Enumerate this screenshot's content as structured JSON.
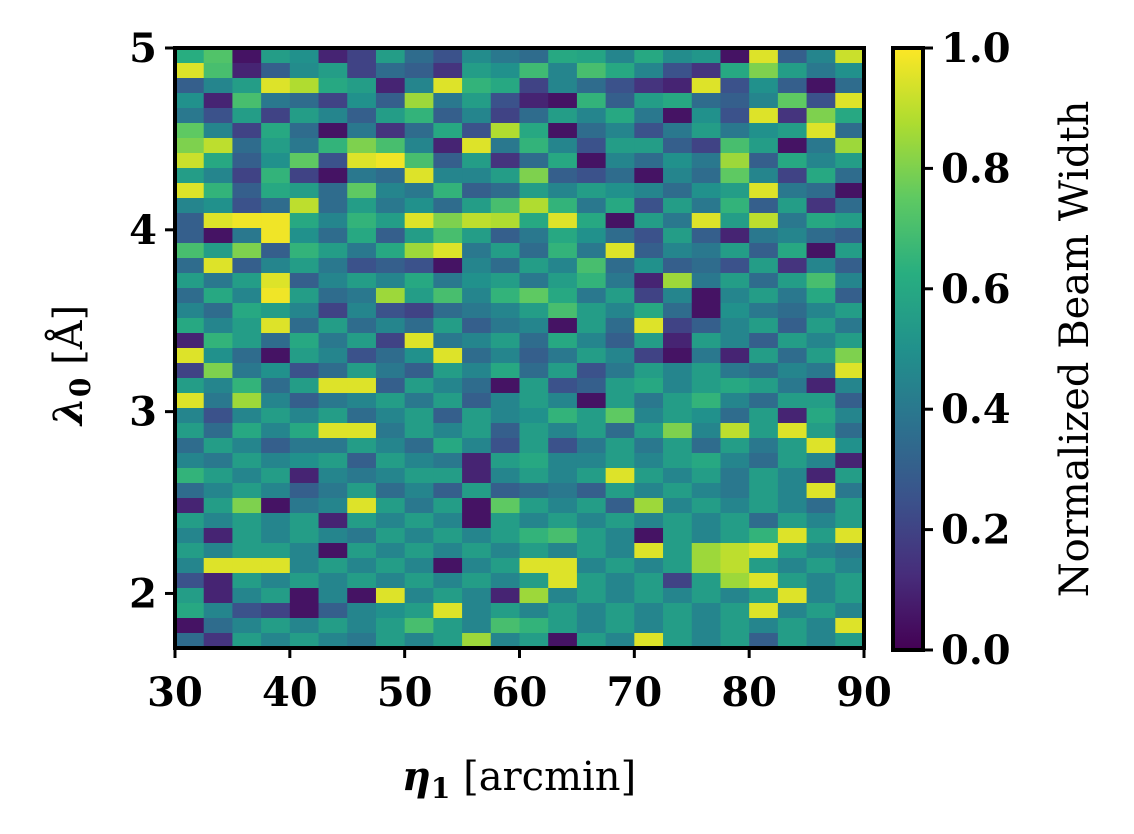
{
  "chart_data": {
    "type": "heatmap",
    "colormap": "viridis",
    "xlabel": {
      "symbol": "η",
      "subscript": "1",
      "unit": " [arcmin]"
    },
    "ylabel": {
      "symbol": "λ",
      "subscript": "0",
      "unit": " [Å]"
    },
    "xlim": [
      30,
      90
    ],
    "ylim": [
      1.7,
      5
    ],
    "x_ticks": [
      30,
      40,
      50,
      60,
      70,
      80,
      90
    ],
    "x_tick_labels": [
      "30",
      "40",
      "50",
      "60",
      "70",
      "80",
      "90"
    ],
    "y_ticks": [
      2,
      3,
      4,
      5
    ],
    "y_tick_labels": [
      "2",
      "3",
      "4",
      "5"
    ],
    "colorbar": {
      "label": "Normalized Beam Width",
      "range": [
        0,
        1
      ],
      "ticks": [
        0.0,
        0.2,
        0.4,
        0.6,
        0.8,
        1.0
      ],
      "tick_labels": [
        "0.0",
        "0.2",
        "0.4",
        "0.6",
        "0.8",
        "1.0"
      ]
    },
    "n_cols": 24,
    "n_rows": 40,
    "z_rows_top_to_bottom": [
      [
        0.62,
        0.72,
        0.05,
        0.55,
        0.5,
        0.1,
        0.2,
        0.55,
        0.35,
        0.25,
        0.48,
        0.4,
        0.35,
        0.6,
        0.58,
        0.45,
        0.6,
        0.48,
        0.52,
        0.05,
        0.95,
        0.3,
        0.45,
        0.92
      ],
      [
        0.95,
        0.7,
        0.1,
        0.3,
        0.48,
        0.55,
        0.2,
        0.35,
        0.3,
        0.15,
        0.55,
        0.5,
        0.68,
        0.45,
        0.7,
        0.6,
        0.45,
        0.25,
        0.15,
        0.6,
        0.8,
        0.55,
        0.4,
        0.5
      ],
      [
        0.3,
        0.45,
        0.55,
        0.95,
        0.88,
        0.6,
        0.55,
        0.1,
        0.45,
        0.95,
        0.65,
        0.6,
        0.2,
        0.45,
        0.35,
        0.25,
        0.15,
        0.1,
        0.95,
        0.25,
        0.5,
        0.3,
        0.05,
        0.35
      ],
      [
        0.5,
        0.1,
        0.7,
        0.4,
        0.35,
        0.2,
        0.5,
        0.3,
        0.85,
        0.4,
        0.55,
        0.25,
        0.1,
        0.05,
        0.65,
        0.3,
        0.55,
        0.6,
        0.35,
        0.3,
        0.45,
        0.75,
        0.25,
        0.95
      ],
      [
        0.4,
        0.25,
        0.55,
        0.2,
        0.55,
        0.45,
        0.3,
        0.55,
        0.65,
        0.3,
        0.45,
        0.2,
        0.35,
        0.55,
        0.45,
        0.6,
        0.4,
        0.05,
        0.5,
        0.25,
        0.95,
        0.15,
        0.8,
        0.6
      ],
      [
        0.75,
        0.45,
        0.2,
        0.6,
        0.35,
        0.05,
        0.4,
        0.15,
        0.35,
        0.6,
        0.25,
        0.88,
        0.6,
        0.05,
        0.35,
        0.45,
        0.25,
        0.4,
        0.55,
        0.4,
        0.5,
        0.55,
        0.95,
        0.35
      ],
      [
        0.8,
        0.9,
        0.35,
        0.55,
        0.4,
        0.65,
        0.8,
        0.7,
        0.45,
        0.1,
        0.95,
        0.4,
        0.65,
        0.45,
        0.25,
        0.55,
        0.55,
        0.3,
        0.2,
        0.7,
        0.55,
        0.05,
        0.4,
        0.85
      ],
      [
        0.92,
        0.6,
        0.3,
        0.5,
        0.75,
        0.25,
        0.95,
        0.98,
        0.7,
        0.3,
        0.55,
        0.15,
        0.35,
        0.6,
        0.05,
        0.45,
        0.35,
        0.5,
        0.4,
        0.85,
        0.3,
        0.6,
        0.45,
        0.55
      ],
      [
        0.55,
        0.45,
        0.2,
        0.65,
        0.2,
        0.05,
        0.4,
        0.35,
        0.95,
        0.45,
        0.45,
        0.55,
        0.8,
        0.3,
        0.25,
        0.35,
        0.05,
        0.45,
        0.35,
        0.75,
        0.45,
        0.2,
        0.6,
        0.35
      ],
      [
        0.95,
        0.65,
        0.3,
        0.6,
        0.55,
        0.35,
        0.75,
        0.45,
        0.4,
        0.65,
        0.3,
        0.35,
        0.55,
        0.45,
        0.55,
        0.5,
        0.45,
        0.35,
        0.5,
        0.55,
        0.95,
        0.4,
        0.35,
        0.05
      ],
      [
        0.45,
        0.5,
        0.25,
        0.35,
        0.9,
        0.35,
        0.55,
        0.4,
        0.5,
        0.35,
        0.55,
        0.7,
        0.88,
        0.65,
        0.4,
        0.6,
        0.25,
        0.55,
        0.4,
        0.65,
        0.3,
        0.55,
        0.15,
        0.35
      ],
      [
        0.3,
        0.95,
        0.98,
        0.98,
        0.6,
        0.45,
        0.65,
        0.55,
        0.95,
        0.8,
        0.9,
        0.88,
        0.6,
        0.95,
        0.6,
        0.05,
        0.55,
        0.4,
        0.95,
        0.55,
        0.9,
        0.4,
        0.6,
        0.55
      ],
      [
        0.3,
        0.05,
        0.4,
        0.98,
        0.5,
        0.35,
        0.6,
        0.3,
        0.55,
        0.7,
        0.55,
        0.3,
        0.4,
        0.6,
        0.5,
        0.35,
        0.25,
        0.55,
        0.3,
        0.1,
        0.4,
        0.45,
        0.35,
        0.3
      ],
      [
        0.7,
        0.55,
        0.8,
        0.3,
        0.65,
        0.55,
        0.4,
        0.6,
        0.85,
        0.95,
        0.4,
        0.55,
        0.35,
        0.65,
        0.4,
        0.95,
        0.3,
        0.45,
        0.4,
        0.55,
        0.3,
        0.6,
        0.05,
        0.55
      ],
      [
        0.35,
        0.95,
        0.3,
        0.45,
        0.55,
        0.4,
        0.25,
        0.3,
        0.25,
        0.05,
        0.45,
        0.35,
        0.55,
        0.45,
        0.7,
        0.35,
        0.5,
        0.3,
        0.35,
        0.25,
        0.55,
        0.15,
        0.45,
        0.3
      ],
      [
        0.55,
        0.4,
        0.55,
        0.95,
        0.3,
        0.45,
        0.55,
        0.45,
        0.6,
        0.4,
        0.5,
        0.55,
        0.4,
        0.55,
        0.65,
        0.4,
        0.1,
        0.85,
        0.4,
        0.55,
        0.35,
        0.55,
        0.7,
        0.45
      ],
      [
        0.35,
        0.6,
        0.45,
        0.98,
        0.55,
        0.35,
        0.4,
        0.85,
        0.55,
        0.7,
        0.45,
        0.65,
        0.75,
        0.6,
        0.4,
        0.55,
        0.2,
        0.45,
        0.05,
        0.45,
        0.55,
        0.4,
        0.6,
        0.3
      ],
      [
        0.45,
        0.35,
        0.6,
        0.55,
        0.45,
        0.2,
        0.45,
        0.25,
        0.2,
        0.35,
        0.4,
        0.45,
        0.55,
        0.7,
        0.55,
        0.45,
        0.6,
        0.35,
        0.05,
        0.5,
        0.4,
        0.35,
        0.45,
        0.55
      ],
      [
        0.6,
        0.45,
        0.55,
        0.95,
        0.35,
        0.55,
        0.35,
        0.45,
        0.35,
        0.55,
        0.3,
        0.4,
        0.45,
        0.05,
        0.55,
        0.35,
        0.95,
        0.2,
        0.3,
        0.45,
        0.55,
        0.3,
        0.55,
        0.4
      ],
      [
        0.1,
        0.65,
        0.55,
        0.35,
        0.6,
        0.4,
        0.55,
        0.2,
        0.95,
        0.4,
        0.45,
        0.55,
        0.35,
        0.6,
        0.45,
        0.3,
        0.55,
        0.1,
        0.55,
        0.45,
        0.3,
        0.55,
        0.45,
        0.55
      ],
      [
        0.95,
        0.5,
        0.35,
        0.05,
        0.55,
        0.45,
        0.25,
        0.35,
        0.5,
        0.95,
        0.35,
        0.45,
        0.3,
        0.4,
        0.55,
        0.45,
        0.2,
        0.05,
        0.4,
        0.1,
        0.55,
        0.35,
        0.55,
        0.8
      ],
      [
        0.2,
        0.8,
        0.4,
        0.5,
        0.25,
        0.35,
        0.55,
        0.4,
        0.3,
        0.55,
        0.45,
        0.6,
        0.35,
        0.55,
        0.25,
        0.4,
        0.55,
        0.45,
        0.55,
        0.4,
        0.35,
        0.45,
        0.4,
        0.95
      ],
      [
        0.55,
        0.45,
        0.65,
        0.35,
        0.55,
        0.95,
        0.95,
        0.3,
        0.55,
        0.45,
        0.35,
        0.05,
        0.55,
        0.25,
        0.3,
        0.55,
        0.6,
        0.45,
        0.55,
        0.6,
        0.55,
        0.4,
        0.1,
        0.45
      ],
      [
        0.95,
        0.4,
        0.85,
        0.45,
        0.3,
        0.4,
        0.45,
        0.55,
        0.4,
        0.55,
        0.3,
        0.45,
        0.55,
        0.45,
        0.05,
        0.55,
        0.4,
        0.55,
        0.65,
        0.45,
        0.35,
        0.55,
        0.55,
        0.3
      ],
      [
        0.45,
        0.25,
        0.45,
        0.55,
        0.45,
        0.55,
        0.35,
        0.45,
        0.55,
        0.3,
        0.55,
        0.45,
        0.5,
        0.65,
        0.55,
        0.75,
        0.45,
        0.55,
        0.5,
        0.35,
        0.55,
        0.1,
        0.6,
        0.45
      ],
      [
        0.55,
        0.35,
        0.6,
        0.45,
        0.6,
        0.95,
        0.95,
        0.4,
        0.55,
        0.45,
        0.55,
        0.3,
        0.55,
        0.45,
        0.55,
        0.35,
        0.55,
        0.8,
        0.45,
        0.9,
        0.55,
        0.95,
        0.55,
        0.35
      ],
      [
        0.35,
        0.55,
        0.45,
        0.3,
        0.4,
        0.4,
        0.55,
        0.45,
        0.35,
        0.6,
        0.45,
        0.25,
        0.55,
        0.25,
        0.4,
        0.55,
        0.4,
        0.55,
        0.35,
        0.55,
        0.4,
        0.55,
        0.95,
        0.5
      ],
      [
        0.45,
        0.4,
        0.55,
        0.45,
        0.5,
        0.55,
        0.3,
        0.55,
        0.45,
        0.4,
        0.1,
        0.55,
        0.6,
        0.45,
        0.45,
        0.55,
        0.45,
        0.55,
        0.6,
        0.45,
        0.35,
        0.55,
        0.45,
        0.1
      ],
      [
        0.65,
        0.55,
        0.45,
        0.55,
        0.1,
        0.45,
        0.4,
        0.45,
        0.55,
        0.55,
        0.1,
        0.45,
        0.55,
        0.45,
        0.55,
        0.95,
        0.55,
        0.45,
        0.55,
        0.4,
        0.55,
        0.45,
        0.1,
        0.55
      ],
      [
        0.35,
        0.45,
        0.55,
        0.45,
        0.3,
        0.4,
        0.55,
        0.35,
        0.45,
        0.3,
        0.55,
        0.3,
        0.35,
        0.4,
        0.3,
        0.55,
        0.45,
        0.55,
        0.45,
        0.4,
        0.55,
        0.45,
        0.95,
        0.4
      ],
      [
        0.1,
        0.55,
        0.8,
        0.05,
        0.4,
        0.45,
        0.95,
        0.55,
        0.4,
        0.55,
        0.05,
        0.75,
        0.55,
        0.45,
        0.55,
        0.3,
        0.85,
        0.45,
        0.55,
        0.45,
        0.55,
        0.45,
        0.35,
        0.55
      ],
      [
        0.55,
        0.45,
        0.55,
        0.45,
        0.55,
        0.1,
        0.55,
        0.45,
        0.55,
        0.45,
        0.05,
        0.55,
        0.45,
        0.55,
        0.45,
        0.55,
        0.45,
        0.55,
        0.45,
        0.55,
        0.35,
        0.55,
        0.45,
        0.55
      ],
      [
        0.45,
        0.1,
        0.55,
        0.45,
        0.55,
        0.45,
        0.4,
        0.55,
        0.45,
        0.55,
        0.45,
        0.55,
        0.65,
        0.7,
        0.55,
        0.45,
        0.05,
        0.55,
        0.45,
        0.55,
        0.65,
        0.95,
        0.55,
        0.95
      ],
      [
        0.55,
        0.45,
        0.55,
        0.55,
        0.45,
        0.05,
        0.55,
        0.45,
        0.55,
        0.45,
        0.55,
        0.45,
        0.55,
        0.45,
        0.55,
        0.45,
        0.95,
        0.55,
        0.85,
        0.9,
        0.95,
        0.55,
        0.45,
        0.4
      ],
      [
        0.45,
        0.95,
        0.95,
        0.95,
        0.45,
        0.55,
        0.45,
        0.55,
        0.45,
        0.05,
        0.45,
        0.55,
        0.95,
        0.95,
        0.45,
        0.55,
        0.45,
        0.55,
        0.85,
        0.9,
        0.55,
        0.45,
        0.55,
        0.45
      ],
      [
        0.25,
        0.1,
        0.55,
        0.45,
        0.55,
        0.45,
        0.55,
        0.45,
        0.55,
        0.45,
        0.55,
        0.45,
        0.55,
        0.95,
        0.55,
        0.45,
        0.55,
        0.2,
        0.55,
        0.85,
        0.95,
        0.55,
        0.45,
        0.55
      ],
      [
        0.55,
        0.1,
        0.45,
        0.55,
        0.05,
        0.45,
        0.05,
        0.95,
        0.45,
        0.55,
        0.45,
        0.1,
        0.85,
        0.45,
        0.55,
        0.45,
        0.55,
        0.45,
        0.55,
        0.45,
        0.55,
        0.95,
        0.45,
        0.55
      ],
      [
        0.6,
        0.45,
        0.25,
        0.2,
        0.05,
        0.3,
        0.45,
        0.5,
        0.55,
        0.95,
        0.45,
        0.55,
        0.45,
        0.55,
        0.45,
        0.55,
        0.45,
        0.55,
        0.45,
        0.55,
        0.95,
        0.45,
        0.55,
        0.45
      ],
      [
        0.05,
        0.35,
        0.45,
        0.55,
        0.45,
        0.55,
        0.45,
        0.55,
        0.7,
        0.55,
        0.45,
        0.7,
        0.65,
        0.55,
        0.45,
        0.55,
        0.45,
        0.55,
        0.45,
        0.55,
        0.45,
        0.55,
        0.45,
        0.95
      ],
      [
        0.35,
        0.15,
        0.55,
        0.45,
        0.55,
        0.45,
        0.4,
        0.55,
        0.45,
        0.55,
        0.85,
        0.45,
        0.55,
        0.05,
        0.55,
        0.45,
        0.95,
        0.55,
        0.45,
        0.55,
        0.3,
        0.55,
        0.45,
        0.55
      ]
    ]
  }
}
